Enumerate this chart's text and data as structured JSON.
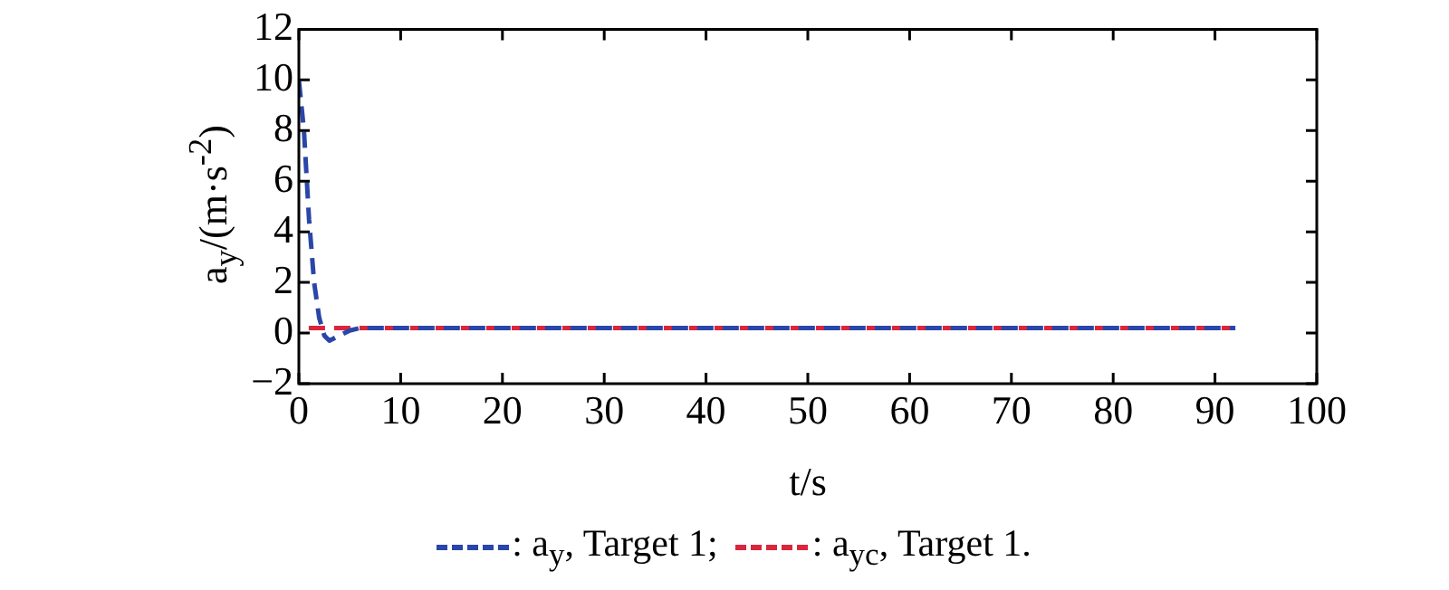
{
  "chart_data": {
    "type": "line",
    "xlabel": "t/s",
    "ylabel": "a$_{y}$/(m·s$^{-2}$)",
    "xlim": [
      0,
      100
    ],
    "xticks": [
      0,
      10,
      20,
      30,
      40,
      50,
      60,
      70,
      80,
      90,
      100
    ],
    "ylim": [
      -2,
      12
    ],
    "yticks": [
      -2,
      0,
      2,
      4,
      6,
      8,
      10,
      12
    ],
    "grid": false,
    "legend": "bottom",
    "marker": "none",
    "series": [
      {
        "name": ": a$_{y}$, Target 1;",
        "color": "#2a46a8",
        "line_style": "dashed",
        "x": [
          0,
          0.5,
          1,
          1.5,
          2,
          2.5,
          3,
          4,
          5,
          6,
          92
        ],
        "values": [
          10,
          8,
          4.5,
          2,
          0.6,
          -0.1,
          -0.3,
          -0.1,
          0.1,
          0.2,
          0.2
        ]
      },
      {
        "name": ": a$_{yc}$, Target 1.",
        "color": "#d9263c",
        "line_style": "dashed",
        "x": [
          0,
          92
        ],
        "values": [
          0.2,
          0.2
        ]
      }
    ]
  }
}
